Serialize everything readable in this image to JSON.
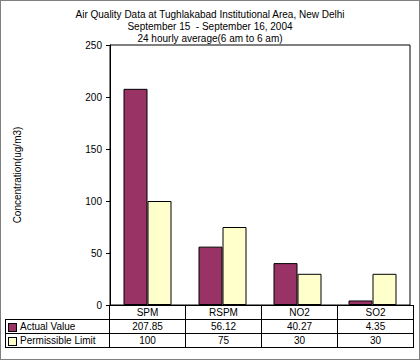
{
  "chart_data": {
    "type": "bar",
    "title": "Air Quality Data at Tughlakabad Institutional Area, New Delhi\nSeptember 15  - September 16, 2004\n24 hourly average(6 am to 6 am)",
    "ylabel": "Concentration(ug/m3)",
    "categories": [
      "SPM",
      "RSPM",
      "NO2",
      "SO2"
    ],
    "series": [
      {
        "name": "Actual Value",
        "color": "#993366",
        "values": [
          207.85,
          56.12,
          40.27,
          4.35
        ]
      },
      {
        "name": "Permissible Limit",
        "color": "#ffffcc",
        "values": [
          100,
          75,
          30,
          30
        ]
      }
    ],
    "ylim": [
      0,
      250
    ],
    "yticks": [
      0,
      50,
      100,
      150,
      200,
      250
    ],
    "grid": false
  }
}
